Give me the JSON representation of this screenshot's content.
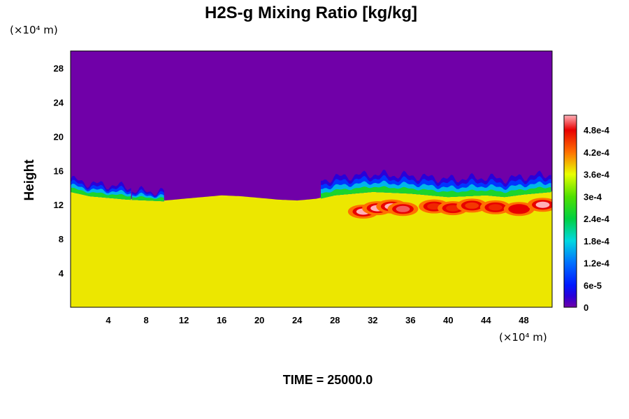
{
  "chart_data": {
    "type": "heatmap",
    "title": "H2S-g Mixing Ratio [kg/kg]",
    "ylabel": "Height",
    "xlabel": "",
    "x_unit_label": "(×10⁴ m)",
    "y_unit_label": "(×10⁴ m)",
    "time_label": "TIME = 25000.0",
    "xlim": [
      0,
      51
    ],
    "ylim": [
      0,
      30
    ],
    "x_ticks": [
      4,
      8,
      12,
      16,
      20,
      24,
      28,
      32,
      36,
      40,
      44,
      48
    ],
    "y_ticks": [
      4,
      8,
      12,
      16,
      20,
      24,
      28
    ],
    "colorbar": {
      "range": [
        0,
        0.00052
      ],
      "tick_values": [
        0,
        6e-05,
        0.00012,
        0.00018,
        0.00024,
        0.0003,
        0.00036,
        0.00042,
        0.00048
      ],
      "tick_labels": [
        "0",
        "6e-5",
        "1.2e-4",
        "1.8e-4",
        "2.4e-4",
        "3e-4",
        "3.6e-4",
        "4.2e-4",
        "4.8e-4"
      ]
    },
    "field": {
      "background_upper": 0,
      "background_lower": 0.00037,
      "interface_height": [
        [
          0,
          13.6
        ],
        [
          2,
          13.1
        ],
        [
          4,
          12.9
        ],
        [
          6,
          12.7
        ],
        [
          8,
          12.6
        ],
        [
          10,
          12.5
        ],
        [
          12,
          12.7
        ],
        [
          14,
          12.9
        ],
        [
          16,
          13.1
        ],
        [
          18,
          13.0
        ],
        [
          20,
          12.8
        ],
        [
          22,
          12.6
        ],
        [
          24,
          12.5
        ],
        [
          26,
          12.7
        ],
        [
          28,
          13.2
        ],
        [
          30,
          13.4
        ],
        [
          32,
          13.6
        ],
        [
          34,
          13.5
        ],
        [
          36,
          13.4
        ],
        [
          38,
          13.2
        ],
        [
          40,
          13.0
        ],
        [
          42,
          13.1
        ],
        [
          44,
          13.2
        ],
        [
          46,
          13.0
        ],
        [
          48,
          13.3
        ],
        [
          51,
          13.6
        ]
      ],
      "blue_fringe_segments": [
        [
          0,
          6.5,
          1.4
        ],
        [
          6.5,
          10,
          1.0
        ],
        [
          26.5,
          51,
          2.0
        ]
      ],
      "hotspots": [
        {
          "x": 31.0,
          "y": 11.2,
          "value": 0.00052
        },
        {
          "x": 32.5,
          "y": 11.6,
          "value": 0.00052
        },
        {
          "x": 34.0,
          "y": 11.8,
          "value": 0.00052
        },
        {
          "x": 35.2,
          "y": 11.5,
          "value": 0.0005
        },
        {
          "x": 38.5,
          "y": 11.8,
          "value": 0.00046
        },
        {
          "x": 40.5,
          "y": 11.6,
          "value": 0.00046
        },
        {
          "x": 42.5,
          "y": 11.9,
          "value": 0.00045
        },
        {
          "x": 45.0,
          "y": 11.7,
          "value": 0.00046
        },
        {
          "x": 47.5,
          "y": 11.5,
          "value": 0.00048
        },
        {
          "x": 50.0,
          "y": 12.0,
          "value": 0.00052
        }
      ]
    }
  }
}
